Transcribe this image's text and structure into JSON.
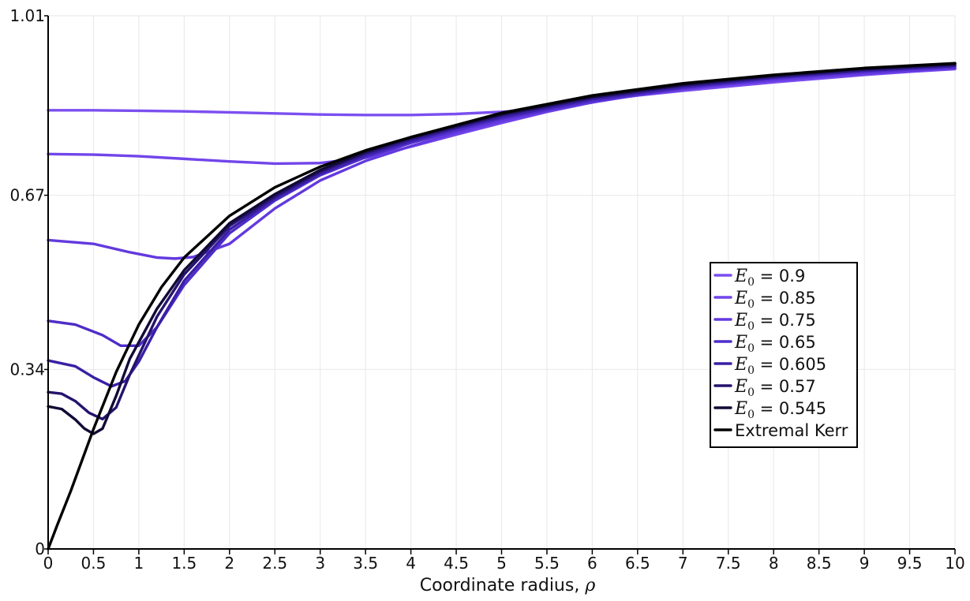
{
  "chart_data": {
    "type": "line",
    "title": "",
    "xlabel": "Coordinate radius, ",
    "xlabel_symbol": "ρ",
    "ylabel": "",
    "xlim": [
      0,
      10
    ],
    "ylim": [
      0,
      1.01
    ],
    "grid": true,
    "legend_position": "right",
    "x_ticks": [
      "0",
      "0.5",
      "1",
      "1.5",
      "2",
      "2.5",
      "3",
      "3.5",
      "4",
      "4.5",
      "5",
      "5.5",
      "6",
      "6.5",
      "7",
      "7.5",
      "8",
      "8.5",
      "9",
      "9.5",
      "10"
    ],
    "y_ticks": [
      {
        "value": 0,
        "label": "0"
      },
      {
        "value": 0.34,
        "label": "0.34"
      },
      {
        "value": 0.67,
        "label": "0.67"
      },
      {
        "value": 1.01,
        "label": "1.01"
      }
    ],
    "series": [
      {
        "name": "0.9",
        "symbol": "E",
        "subscript": "0",
        "color": "#7b4ff0",
        "x": [
          0,
          0.5,
          1,
          1.5,
          2,
          2.5,
          3,
          3.5,
          4,
          4.5,
          5,
          5.5,
          6,
          6.5,
          7,
          7.5,
          8,
          8.5,
          9,
          9.5,
          10
        ],
        "y": [
          0.831,
          0.831,
          0.83,
          0.829,
          0.827,
          0.825,
          0.823,
          0.822,
          0.822,
          0.824,
          0.828,
          0.834,
          0.848,
          0.859,
          0.868,
          0.876,
          0.884,
          0.891,
          0.898,
          0.904,
          0.909
        ]
      },
      {
        "name": "0.85",
        "symbol": "E",
        "subscript": "0",
        "color": "#7245ea",
        "x": [
          0,
          0.5,
          1,
          1.5,
          2,
          2.5,
          3,
          3.5,
          4,
          4.5,
          5,
          5.5,
          6,
          6.5,
          7,
          7.5,
          8,
          8.5,
          9,
          9.5,
          10
        ],
        "y": [
          0.748,
          0.747,
          0.744,
          0.739,
          0.734,
          0.73,
          0.731,
          0.741,
          0.762,
          0.785,
          0.807,
          0.828,
          0.846,
          0.86,
          0.87,
          0.879,
          0.886,
          0.893,
          0.899,
          0.905,
          0.91
        ]
      },
      {
        "name": "0.75",
        "symbol": "E",
        "subscript": "0",
        "color": "#6339df",
        "x": [
          0,
          0.5,
          0.9,
          1.2,
          1.4,
          1.6,
          2,
          2.5,
          3,
          3.5,
          4,
          4.5,
          5,
          5.5,
          6,
          6.5,
          7,
          7.5,
          8,
          8.5,
          9,
          9.5,
          10
        ],
        "y": [
          0.585,
          0.578,
          0.562,
          0.552,
          0.55,
          0.553,
          0.578,
          0.645,
          0.698,
          0.735,
          0.763,
          0.789,
          0.811,
          0.83,
          0.846,
          0.86,
          0.871,
          0.88,
          0.888,
          0.895,
          0.901,
          0.906,
          0.911
        ]
      },
      {
        "name": "0.65",
        "symbol": "E",
        "subscript": "0",
        "color": "#4f2dc8",
        "x": [
          0,
          0.3,
          0.6,
          0.8,
          1,
          1.2,
          1.5,
          2,
          2.5,
          3,
          3.5,
          4,
          4.5,
          5,
          6,
          7,
          8,
          9,
          10
        ],
        "y": [
          0.432,
          0.425,
          0.405,
          0.385,
          0.385,
          0.42,
          0.5,
          0.598,
          0.66,
          0.708,
          0.742,
          0.769,
          0.793,
          0.815,
          0.849,
          0.873,
          0.891,
          0.904,
          0.913
        ]
      },
      {
        "name": "0.605",
        "symbol": "E",
        "subscript": "0",
        "color": "#3a1fa5",
        "x": [
          0,
          0.3,
          0.5,
          0.7,
          0.85,
          1,
          1.2,
          1.5,
          2,
          2.5,
          3,
          3.5,
          4,
          4.5,
          5,
          6,
          7,
          8,
          9,
          10
        ],
        "y": [
          0.357,
          0.346,
          0.325,
          0.308,
          0.318,
          0.355,
          0.42,
          0.508,
          0.605,
          0.664,
          0.711,
          0.746,
          0.773,
          0.797,
          0.818,
          0.852,
          0.875,
          0.893,
          0.906,
          0.915
        ]
      },
      {
        "name": "0.57",
        "symbol": "E",
        "subscript": "0",
        "color": "#25136e",
        "x": [
          0,
          0.15,
          0.3,
          0.45,
          0.6,
          0.75,
          0.9,
          1.2,
          1.5,
          2,
          2.5,
          3,
          3.5,
          4,
          5,
          6,
          7,
          8,
          9,
          10
        ],
        "y": [
          0.297,
          0.294,
          0.28,
          0.258,
          0.246,
          0.268,
          0.33,
          0.44,
          0.52,
          0.612,
          0.668,
          0.715,
          0.75,
          0.777,
          0.822,
          0.855,
          0.878,
          0.895,
          0.908,
          0.917
        ]
      },
      {
        "name": "0.545",
        "symbol": "E",
        "subscript": "0",
        "color": "#120a36",
        "x": [
          0,
          0.15,
          0.3,
          0.4,
          0.5,
          0.6,
          0.75,
          0.9,
          1.2,
          1.5,
          2,
          2.5,
          3,
          3.5,
          4,
          5,
          6,
          7,
          8,
          9,
          10
        ],
        "y": [
          0.27,
          0.265,
          0.245,
          0.228,
          0.218,
          0.228,
          0.29,
          0.36,
          0.455,
          0.528,
          0.617,
          0.672,
          0.718,
          0.753,
          0.78,
          0.824,
          0.857,
          0.88,
          0.897,
          0.91,
          0.919
        ]
      },
      {
        "name": "Extremal Kerr",
        "symbol": "",
        "subscript": "",
        "color": "#000000",
        "x": [
          0,
          0.1,
          0.25,
          0.5,
          0.75,
          1,
          1.25,
          1.5,
          2,
          2.5,
          3,
          3.5,
          4,
          5,
          6,
          7,
          8,
          9,
          10
        ],
        "y": [
          0.0,
          0.045,
          0.11,
          0.227,
          0.335,
          0.425,
          0.496,
          0.552,
          0.631,
          0.685,
          0.724,
          0.755,
          0.78,
          0.826,
          0.859,
          0.882,
          0.898,
          0.911,
          0.92
        ]
      }
    ]
  }
}
